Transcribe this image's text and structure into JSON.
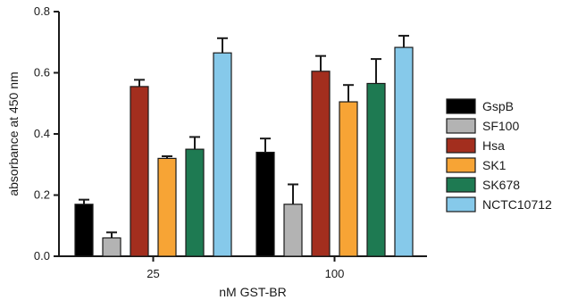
{
  "chart_data": {
    "type": "bar",
    "title": "",
    "xlabel": "nM GST-BR",
    "ylabel": "absorbance at 450 nm",
    "categories": [
      "25",
      "100"
    ],
    "ylim": [
      0,
      0.8
    ],
    "yticks": [
      "0.0",
      "0.2",
      "0.4",
      "0.6",
      "0.8"
    ],
    "grid": false,
    "legend_position": "right",
    "series": [
      {
        "name": "GspB",
        "color": "#000000",
        "values": [
          0.17,
          0.34
        ],
        "errors": [
          0.015,
          0.045
        ]
      },
      {
        "name": "SF100",
        "color": "#b3b3b3",
        "values": [
          0.06,
          0.17
        ],
        "errors": [
          0.018,
          0.065
        ]
      },
      {
        "name": "Hsa",
        "color": "#a32e1e",
        "values": [
          0.555,
          0.605
        ],
        "errors": [
          0.022,
          0.05
        ]
      },
      {
        "name": "SK1",
        "color": "#f7a435",
        "values": [
          0.32,
          0.505
        ],
        "errors": [
          0.007,
          0.055
        ]
      },
      {
        "name": "SK678",
        "color": "#1e7a52",
        "values": [
          0.35,
          0.565
        ],
        "errors": [
          0.04,
          0.08
        ]
      },
      {
        "name": "NCTC10712",
        "color": "#86c9ea",
        "values": [
          0.665,
          0.683
        ],
        "errors": [
          0.048,
          0.038
        ]
      }
    ]
  }
}
